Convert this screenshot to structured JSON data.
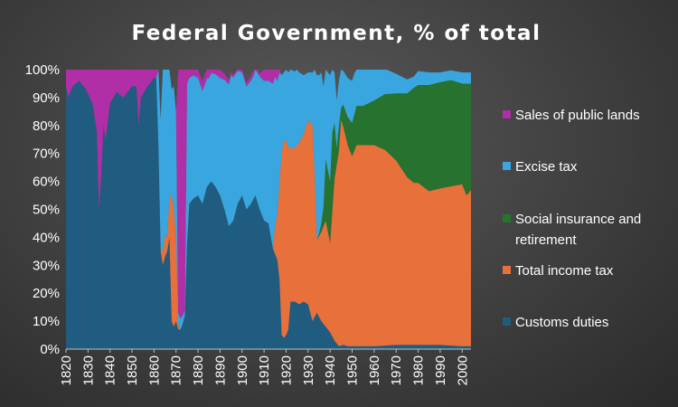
{
  "chart_data": {
    "type": "area",
    "stacked": true,
    "title": "Federal Government, % of total",
    "xlabel": "",
    "ylabel": "",
    "xlim": [
      1820,
      2004
    ],
    "ylim": [
      0,
      100
    ],
    "x_ticks": [
      1820,
      1830,
      1840,
      1850,
      1860,
      1870,
      1880,
      1890,
      1900,
      1910,
      1920,
      1930,
      1940,
      1950,
      1960,
      1970,
      1980,
      1990,
      2000
    ],
    "y_ticks": [
      "0%",
      "10%",
      "20%",
      "30%",
      "40%",
      "50%",
      "60%",
      "70%",
      "80%",
      "90%",
      "100%"
    ],
    "legend_position": "right",
    "legend_order": [
      "Sales of public lands",
      "Excise tax",
      "Social insurance and retirement",
      "Total income tax",
      "Customs duties"
    ],
    "series": [
      {
        "name": "Customs duties",
        "color": "#1f5c80",
        "points": [
          [
            1820,
            94
          ],
          [
            1821,
            90
          ],
          [
            1823,
            94
          ],
          [
            1826,
            96
          ],
          [
            1829,
            93
          ],
          [
            1832,
            88
          ],
          [
            1834,
            78
          ],
          [
            1835,
            50
          ],
          [
            1836,
            62
          ],
          [
            1837,
            80
          ],
          [
            1838,
            75
          ],
          [
            1840,
            88
          ],
          [
            1843,
            92
          ],
          [
            1846,
            90
          ],
          [
            1850,
            94
          ],
          [
            1852,
            94
          ],
          [
            1853,
            80
          ],
          [
            1854,
            90
          ],
          [
            1857,
            94
          ],
          [
            1859,
            96
          ],
          [
            1860,
            97
          ],
          [
            1861,
            97
          ],
          [
            1862,
            73
          ],
          [
            1863,
            35
          ],
          [
            1864,
            30
          ],
          [
            1865,
            33
          ],
          [
            1866,
            35
          ],
          [
            1867,
            40
          ],
          [
            1868,
            10
          ],
          [
            1869,
            8
          ],
          [
            1870,
            10
          ],
          [
            1871,
            7
          ],
          [
            1872,
            7
          ],
          [
            1873,
            9
          ],
          [
            1874,
            12
          ],
          [
            1875,
            38
          ],
          [
            1876,
            52
          ],
          [
            1878,
            54
          ],
          [
            1880,
            55
          ],
          [
            1882,
            52
          ],
          [
            1884,
            58
          ],
          [
            1886,
            60
          ],
          [
            1888,
            58
          ],
          [
            1890,
            55
          ],
          [
            1892,
            50
          ],
          [
            1894,
            44
          ],
          [
            1896,
            46
          ],
          [
            1898,
            52
          ],
          [
            1900,
            55
          ],
          [
            1902,
            50
          ],
          [
            1904,
            52
          ],
          [
            1906,
            55
          ],
          [
            1908,
            50
          ],
          [
            1910,
            46
          ],
          [
            1912,
            45
          ],
          [
            1914,
            36
          ],
          [
            1916,
            32
          ],
          [
            1917,
            25
          ],
          [
            1918,
            5
          ],
          [
            1919,
            4
          ],
          [
            1920,
            5
          ],
          [
            1921,
            7
          ],
          [
            1922,
            17
          ],
          [
            1924,
            17
          ],
          [
            1926,
            16
          ],
          [
            1928,
            17
          ],
          [
            1930,
            16
          ],
          [
            1932,
            10
          ],
          [
            1934,
            13
          ],
          [
            1936,
            10
          ],
          [
            1938,
            8
          ],
          [
            1940,
            6
          ],
          [
            1942,
            3
          ],
          [
            1944,
            1
          ],
          [
            1946,
            1.5
          ],
          [
            1948,
            1
          ],
          [
            1950,
            1
          ],
          [
            1960,
            1
          ],
          [
            1970,
            1.5
          ],
          [
            1980,
            1.5
          ],
          [
            1990,
            1.5
          ],
          [
            2000,
            1
          ],
          [
            2004,
            1
          ]
        ]
      },
      {
        "name": "Total income tax",
        "color": "#e8703a",
        "points": [
          [
            1820,
            0
          ],
          [
            1860,
            0
          ],
          [
            1862,
            0
          ],
          [
            1863,
            1
          ],
          [
            1864,
            5
          ],
          [
            1865,
            8
          ],
          [
            1866,
            5
          ],
          [
            1867,
            15
          ],
          [
            1868,
            45
          ],
          [
            1869,
            42
          ],
          [
            1870,
            30
          ],
          [
            1871,
            2
          ],
          [
            1872,
            0
          ],
          [
            1914,
            0
          ],
          [
            1915,
            10
          ],
          [
            1916,
            16
          ],
          [
            1917,
            35
          ],
          [
            1918,
            66
          ],
          [
            1919,
            70
          ],
          [
            1920,
            70
          ],
          [
            1921,
            65
          ],
          [
            1922,
            55
          ],
          [
            1924,
            55
          ],
          [
            1926,
            58
          ],
          [
            1928,
            60
          ],
          [
            1930,
            66
          ],
          [
            1932,
            70
          ],
          [
            1933,
            50
          ],
          [
            1934,
            26
          ],
          [
            1936,
            32
          ],
          [
            1938,
            38
          ],
          [
            1940,
            32
          ],
          [
            1942,
            58
          ],
          [
            1944,
            70
          ],
          [
            1945,
            81
          ],
          [
            1946,
            78
          ],
          [
            1948,
            72
          ],
          [
            1950,
            68
          ],
          [
            1952,
            72
          ],
          [
            1955,
            72
          ],
          [
            1960,
            72
          ],
          [
            1965,
            70
          ],
          [
            1970,
            66
          ],
          [
            1975,
            60
          ],
          [
            1978,
            58
          ],
          [
            1980,
            58
          ],
          [
            1985,
            55
          ],
          [
            1990,
            56
          ],
          [
            1995,
            57
          ],
          [
            2000,
            58
          ],
          [
            2002,
            54
          ],
          [
            2004,
            56
          ]
        ]
      },
      {
        "name": "Social insurance and retirement",
        "color": "#26722e",
        "points": [
          [
            1820,
            0
          ],
          [
            1934,
            0
          ],
          [
            1935,
            1
          ],
          [
            1936,
            3
          ],
          [
            1937,
            7
          ],
          [
            1938,
            22
          ],
          [
            1940,
            22
          ],
          [
            1941,
            28
          ],
          [
            1942,
            20
          ],
          [
            1943,
            6
          ],
          [
            1944,
            9
          ],
          [
            1945,
            4
          ],
          [
            1946,
            8
          ],
          [
            1948,
            10
          ],
          [
            1950,
            12
          ],
          [
            1952,
            14
          ],
          [
            1955,
            14
          ],
          [
            1960,
            16
          ],
          [
            1965,
            20
          ],
          [
            1970,
            24
          ],
          [
            1975,
            30
          ],
          [
            1978,
            34
          ],
          [
            1980,
            35
          ],
          [
            1985,
            38
          ],
          [
            1990,
            38
          ],
          [
            1995,
            38
          ],
          [
            2000,
            36
          ],
          [
            2002,
            40
          ],
          [
            2004,
            38
          ]
        ]
      },
      {
        "name": "Excise tax",
        "color": "#3aa6e0",
        "points": [
          [
            1820,
            0
          ],
          [
            1860,
            0
          ],
          [
            1861,
            0
          ],
          [
            1862,
            27
          ],
          [
            1864,
            65
          ],
          [
            1866,
            60
          ],
          [
            1868,
            38
          ],
          [
            1869,
            44
          ],
          [
            1870,
            45
          ],
          [
            1871,
            4
          ],
          [
            1872,
            4
          ],
          [
            1873,
            3
          ],
          [
            1874,
            2
          ],
          [
            1875,
            57
          ],
          [
            1876,
            45
          ],
          [
            1878,
            44
          ],
          [
            1880,
            42
          ],
          [
            1885,
            38
          ],
          [
            1890,
            42
          ],
          [
            1895,
            53
          ],
          [
            1900,
            44
          ],
          [
            1905,
            44
          ],
          [
            1910,
            50
          ],
          [
            1912,
            51
          ],
          [
            1914,
            59
          ],
          [
            1916,
            48
          ],
          [
            1917,
            39
          ],
          [
            1918,
            27
          ],
          [
            1919,
            25
          ],
          [
            1920,
            25
          ],
          [
            1921,
            27
          ],
          [
            1922,
            28
          ],
          [
            1925,
            27
          ],
          [
            1928,
            21
          ],
          [
            1930,
            17
          ],
          [
            1932,
            19
          ],
          [
            1934,
            59
          ],
          [
            1936,
            54
          ],
          [
            1938,
            32
          ],
          [
            1940,
            38
          ],
          [
            1941,
            35
          ],
          [
            1942,
            18
          ],
          [
            1944,
            16
          ],
          [
            1946,
            12
          ],
          [
            1948,
            14
          ],
          [
            1950,
            15
          ],
          [
            1955,
            13
          ],
          [
            1960,
            11
          ],
          [
            1965,
            9
          ],
          [
            1970,
            7
          ],
          [
            1975,
            5
          ],
          [
            1978,
            4
          ],
          [
            1980,
            5
          ],
          [
            1985,
            4.5
          ],
          [
            1990,
            3.5
          ],
          [
            1995,
            3.5
          ],
          [
            2000,
            4
          ],
          [
            2002,
            4
          ],
          [
            2004,
            4
          ]
        ]
      },
      {
        "name": "Sales of public lands",
        "color": "#b02fa6",
        "points": [
          [
            1820,
            6
          ],
          [
            1821,
            10
          ],
          [
            1823,
            6
          ],
          [
            1826,
            4
          ],
          [
            1829,
            7
          ],
          [
            1832,
            12
          ],
          [
            1834,
            22
          ],
          [
            1835,
            50
          ],
          [
            1836,
            38
          ],
          [
            1837,
            20
          ],
          [
            1838,
            25
          ],
          [
            1840,
            12
          ],
          [
            1843,
            8
          ],
          [
            1846,
            10
          ],
          [
            1850,
            6
          ],
          [
            1852,
            6
          ],
          [
            1853,
            20
          ],
          [
            1854,
            10
          ],
          [
            1857,
            6
          ],
          [
            1859,
            4
          ],
          [
            1860,
            3
          ],
          [
            1861,
            3
          ],
          [
            1862,
            0
          ],
          [
            1870,
            0
          ],
          [
            1871,
            87
          ],
          [
            1872,
            89
          ],
          [
            1873,
            88
          ],
          [
            1874,
            86
          ],
          [
            1875,
            5
          ],
          [
            1876,
            3
          ],
          [
            1878,
            2
          ],
          [
            1880,
            3
          ],
          [
            1885,
            4
          ],
          [
            1890,
            3
          ],
          [
            1895,
            1
          ],
          [
            1900,
            1
          ],
          [
            1905,
            2
          ],
          [
            1908,
            1
          ],
          [
            1910,
            4
          ],
          [
            1912,
            4
          ],
          [
            1914,
            5
          ],
          [
            1916,
            4
          ],
          [
            1917,
            1
          ],
          [
            1918,
            0
          ],
          [
            2004,
            0
          ]
        ]
      }
    ]
  }
}
